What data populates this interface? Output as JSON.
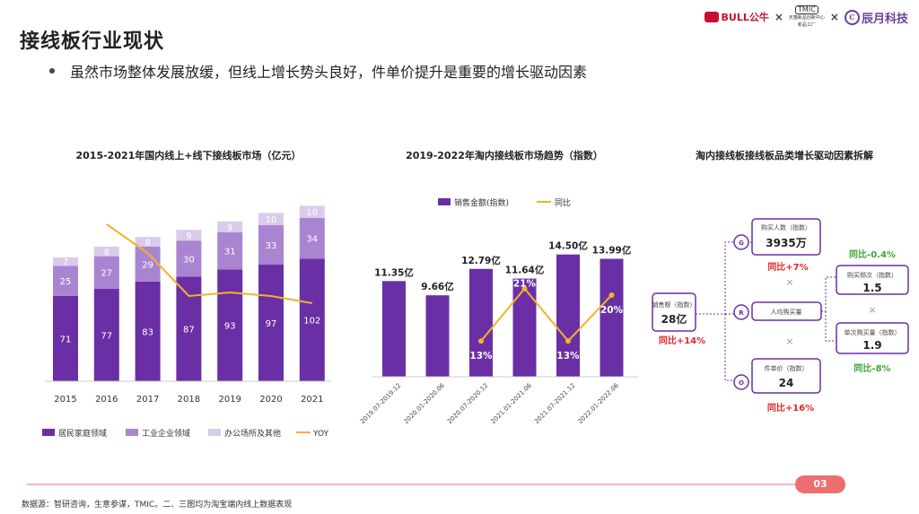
{
  "page": {
    "title": "接线板行业现状",
    "bullet": "虽然市场整体发展放缓，但线上增长势头良好，件单价提升是重要的增长驱动因素",
    "page_number": "03",
    "footnote": "数据源：智研咨询，生意参谋，TMIC。二、三图均为淘宝端内线上数据表现",
    "logos": {
      "bull": "BULL公牛",
      "tmic": "TMIC",
      "tmic_sub": "天猫新品创新中心",
      "tmic_sub2": "新品工厂",
      "chenyue": "辰月科技",
      "separator": "×"
    }
  },
  "colors": {
    "dark_purple": "#6a2fa5",
    "mid_purple": "#a985d1",
    "light_purple": "#dacbea",
    "yoy_line": "#f0b428",
    "accent_red": "#ec6e6e",
    "node_border": "#6a2fa5",
    "green": "#3fa535",
    "red": "#e0282e"
  },
  "chart_data": [
    {
      "type": "bar",
      "stacked": true,
      "title": "2015-2021年国内线上+线下接线板市场（亿元）",
      "categories": [
        "2015",
        "2016",
        "2017",
        "2018",
        "2019",
        "2020",
        "2021"
      ],
      "series": [
        {
          "name": "居民家庭领域",
          "values": [
            71,
            77,
            83,
            87,
            93,
            97,
            102
          ]
        },
        {
          "name": "工业企业领域",
          "values": [
            25,
            27,
            29,
            30,
            31,
            33,
            34
          ]
        },
        {
          "name": "办公场所及其他",
          "values": [
            7,
            8,
            8,
            9,
            9,
            10,
            10
          ]
        },
        {
          "name": "YOY",
          "type": "line",
          "values": [
            null,
            0.16,
            0.12,
            0.06,
            0.065,
            0.06,
            0.05
          ]
        }
      ],
      "legend": [
        "居民家庭领域",
        "工业企业领域",
        "办公场所及其他",
        "YOY"
      ],
      "legend_position": "bottom",
      "grid": false
    },
    {
      "type": "bar",
      "title": "2019-2022年淘内接线板市场趋势（指数）",
      "categories": [
        "2019.07-2019.12",
        "2020.01-2020.06",
        "2020.07-2020.12",
        "2021.01-2021.06",
        "2021.07-2021.12",
        "2022.01-2022.06"
      ],
      "series": [
        {
          "name": "销售金额(指数)",
          "values": [
            11.35,
            9.66,
            12.79,
            11.64,
            14.5,
            13.99
          ],
          "labels": [
            "11.35亿",
            "9.66亿",
            "12.79亿",
            "11.64亿",
            "14.50亿",
            "13.99亿"
          ]
        },
        {
          "name": "同比",
          "type": "line",
          "values": [
            null,
            null,
            0.13,
            0.21,
            0.13,
            0.2
          ],
          "labels": [
            "",
            "",
            "13%",
            "21%",
            "13%",
            "20%"
          ]
        }
      ],
      "legend": [
        "销售金额(指数)",
        "同比"
      ],
      "legend_position": "top",
      "grid": false
    }
  ],
  "driver_tree": {
    "title": "淘内接线板接线板品类增长驱动因素拆解",
    "root": {
      "label": "销售额（指数）",
      "value": "28亿",
      "change": "同比+14%"
    },
    "g": {
      "letter": "G",
      "label": "购买人数（指数）",
      "value": "3935万",
      "change": "同比+7%"
    },
    "r": {
      "letter": "R",
      "label": "人均购买量"
    },
    "o": {
      "letter": "O",
      "label": "件单价（指数）",
      "value": "24",
      "change": "同比+16%"
    },
    "r1": {
      "label": "购买频次（指数）",
      "value": "1.5",
      "change": "同比-0.4%"
    },
    "r2": {
      "label": "单次购买量（指数）",
      "value": "1.9",
      "change": "同比-8%"
    },
    "times": "×"
  }
}
